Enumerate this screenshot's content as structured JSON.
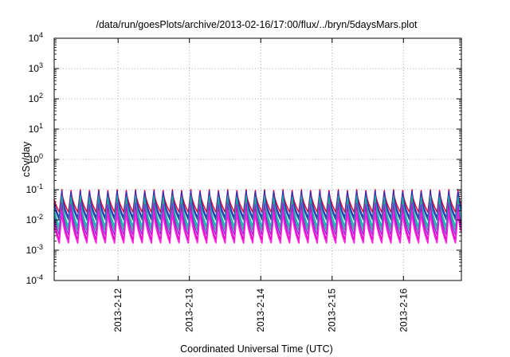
{
  "chart_data": {
    "type": "line",
    "title": "/data/run/goesPlots/archive/2013-02-16/17:00/flux/../bryn/5daysMars.plot",
    "xlabel": "Coordinated Universal Time (UTC)",
    "ylabel": "cSv/day",
    "yscale": "log",
    "ylim": [
      0.0001,
      10000
    ],
    "xlim": [
      "2013-02-11T02:30",
      "2013-02-16T19:30"
    ],
    "grid": true,
    "legend": "none",
    "y_ticks": [
      {
        "base": "10",
        "exp": "-4"
      },
      {
        "base": "10",
        "exp": "-3"
      },
      {
        "base": "10",
        "exp": "-2"
      },
      {
        "base": "10",
        "exp": "-1"
      },
      {
        "base": "10",
        "exp": "0"
      },
      {
        "base": "10",
        "exp": "1"
      },
      {
        "base": "10",
        "exp": "2"
      },
      {
        "base": "10",
        "exp": "3"
      },
      {
        "base": "10",
        "exp": "4"
      }
    ],
    "x_ticks": [
      "2013-2-12",
      "2013-2-13",
      "2013-2-14",
      "2013-2-15",
      "2013-2-16"
    ],
    "oscillation": {
      "period_hours": 3.1,
      "phase_hours": 0.5,
      "trough_fraction": 0.72
    },
    "series": [
      {
        "color": "#e8002a",
        "peak": 0.1,
        "trough": 0.018
      },
      {
        "color": "#1f2fd0",
        "peak": 0.09,
        "trough": 0.012
      },
      {
        "color": "#3b4a9a",
        "peak": 0.07,
        "trough": 0.01
      },
      {
        "color": "#00b8c0",
        "peak": 0.06,
        "trough": 0.006
      },
      {
        "color": "#2ea78c",
        "peak": 0.045,
        "trough": 0.0045
      },
      {
        "color": "#8a2be2",
        "peak": 0.035,
        "trough": 0.0032
      },
      {
        "color": "#d800c0",
        "peak": 0.026,
        "trough": 0.0022
      },
      {
        "color": "#ff20e0",
        "peak": 0.02,
        "trough": 0.0017
      }
    ]
  }
}
